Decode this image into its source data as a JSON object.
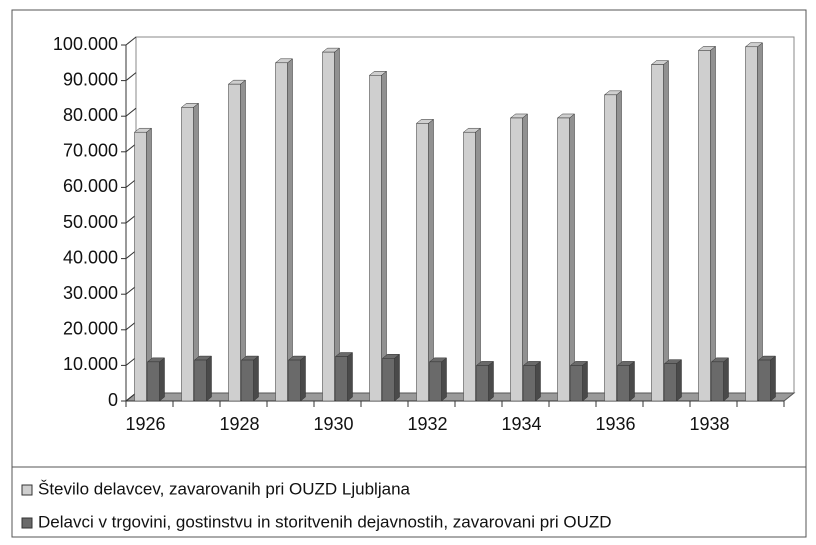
{
  "chart_data": {
    "type": "bar",
    "categories": [
      "1926",
      null,
      "1928",
      null,
      "1930",
      null,
      "1932",
      null,
      "1934",
      null,
      "1936",
      null,
      "1938",
      null
    ],
    "series": [
      {
        "name": "Število delavcev, zavarovanih pri OUZD Ljubljana",
        "color": "#cfcfcf",
        "values": [
          75500,
          82500,
          89000,
          95000,
          98000,
          91500,
          78000,
          75500,
          79500,
          79500,
          86000,
          94500,
          98500,
          99500
        ]
      },
      {
        "name": "Delavci v trgovini, gostinstvu in storitvenih dejavnostih, zavarovani pri OUZD",
        "color": "#6a6a6a",
        "values": [
          11000,
          11500,
          11500,
          11500,
          12500,
          12000,
          11000,
          10000,
          10000,
          10000,
          10000,
          10500,
          11000,
          11500
        ]
      }
    ],
    "ylim": [
      0,
      100000
    ],
    "yticks": [
      0,
      {
        "value": 10000,
        "label": "10.000"
      },
      {
        "value": 20000,
        "label": "20.000"
      },
      {
        "value": 30000,
        "label": "30.000"
      },
      {
        "value": 40000,
        "label": "40.000"
      },
      {
        "value": 50000,
        "label": "50.000"
      },
      {
        "value": 60000,
        "label": "60.000"
      },
      {
        "value": 70000,
        "label": "70.000"
      },
      {
        "value": 80000,
        "label": "80.000"
      },
      {
        "value": 90000,
        "label": "90.000"
      },
      {
        "value": 100000,
        "label": "100.000"
      }
    ]
  }
}
